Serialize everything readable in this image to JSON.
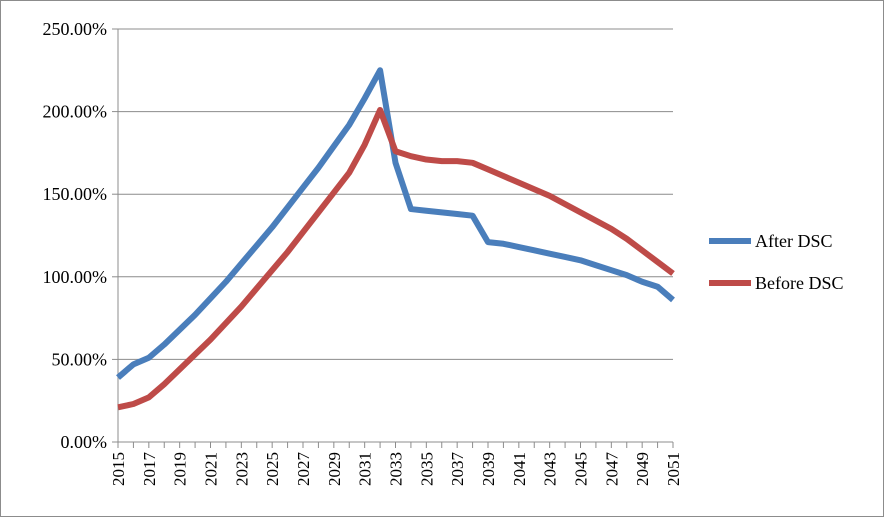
{
  "chart_data": {
    "type": "line",
    "title": "",
    "xlabel": "",
    "ylabel": "",
    "x": [
      2015,
      2016,
      2017,
      2018,
      2019,
      2020,
      2021,
      2022,
      2023,
      2024,
      2025,
      2026,
      2027,
      2028,
      2029,
      2030,
      2031,
      2032,
      2033,
      2034,
      2035,
      2036,
      2037,
      2038,
      2039,
      2040,
      2041,
      2042,
      2043,
      2044,
      2045,
      2046,
      2047,
      2048,
      2049,
      2050,
      2051
    ],
    "x_tick_labels": [
      "2015",
      "2017",
      "2019",
      "2021",
      "2023",
      "2025",
      "2027",
      "2029",
      "2031",
      "2033",
      "2035",
      "2037",
      "2039",
      "2041",
      "2043",
      "2045",
      "2047",
      "2049",
      "2051"
    ],
    "y_tick_labels": [
      "0.00%",
      "50.00%",
      "100.00%",
      "150.00%",
      "200.00%",
      "250.00%"
    ],
    "ylim": [
      0,
      2.5
    ],
    "grid": "horizontal",
    "legend_position": "right",
    "series": [
      {
        "name": "After DSC",
        "color": "#4a7ebb",
        "values": [
          0.39,
          0.47,
          0.51,
          0.59,
          0.68,
          0.77,
          0.87,
          0.97,
          1.08,
          1.19,
          1.3,
          1.42,
          1.54,
          1.66,
          1.79,
          1.92,
          2.08,
          2.25,
          1.69,
          1.41,
          1.4,
          1.39,
          1.38,
          1.37,
          1.21,
          1.2,
          1.18,
          1.16,
          1.14,
          1.12,
          1.1,
          1.07,
          1.04,
          1.01,
          0.97,
          0.94,
          0.86
        ]
      },
      {
        "name": "Before DSC",
        "color": "#be4b48",
        "values": [
          0.21,
          0.23,
          0.27,
          0.35,
          0.44,
          0.53,
          0.62,
          0.72,
          0.82,
          0.93,
          1.04,
          1.15,
          1.27,
          1.39,
          1.51,
          1.63,
          1.8,
          2.01,
          1.76,
          1.73,
          1.71,
          1.7,
          1.7,
          1.69,
          1.65,
          1.61,
          1.57,
          1.53,
          1.49,
          1.44,
          1.39,
          1.34,
          1.29,
          1.23,
          1.16,
          1.09,
          1.02
        ]
      }
    ]
  }
}
